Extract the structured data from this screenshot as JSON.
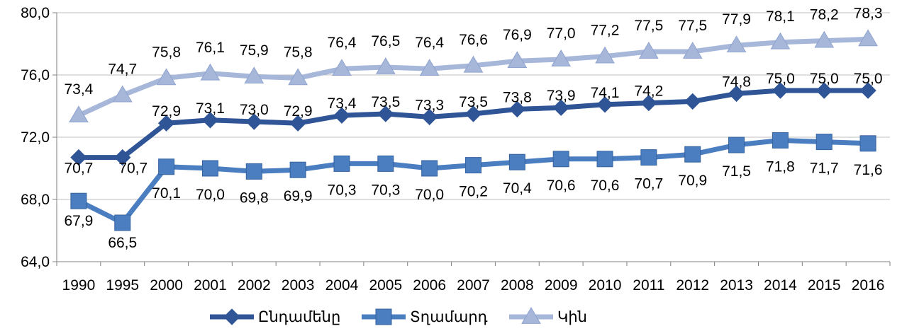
{
  "chart_data": {
    "type": "line",
    "categories": [
      "1990",
      "1995",
      "2000",
      "2001",
      "2002",
      "2003",
      "2004",
      "2005",
      "2006",
      "2007",
      "2008",
      "2009",
      "2010",
      "2011",
      "2012",
      "2013",
      "2014",
      "2015",
      "2016"
    ],
    "ylim": [
      64,
      80
    ],
    "yticks": [
      "64,0",
      "68,0",
      "72,0",
      "76,0",
      "80,0"
    ],
    "ytick_values": [
      64,
      68,
      72,
      76,
      80
    ],
    "grid": "horizontal",
    "legend_position": "bottom",
    "series": [
      {
        "name": "Ընդամենը",
        "color": "#2F5597",
        "marker": "diamond",
        "values": [
          70.7,
          70.7,
          72.9,
          73.1,
          73.0,
          72.9,
          73.4,
          73.5,
          73.3,
          73.5,
          73.8,
          73.9,
          74.1,
          74.2,
          74.3,
          74.8,
          75.0,
          75.0,
          75.0
        ],
        "labels": [
          "70,7",
          "70,7",
          "72,9",
          "73,1",
          "73,0",
          "72,9",
          "73,4",
          "73,5",
          "73,3",
          "73,5",
          "73,8",
          "73,9",
          "74,1",
          "74,2",
          "",
          "74,8",
          "75,0",
          "75,0",
          "75,0"
        ]
      },
      {
        "name": "Տղամարդ",
        "color": "#4A7EC0",
        "marker": "square",
        "values": [
          67.9,
          66.5,
          70.1,
          70.0,
          69.8,
          69.9,
          70.3,
          70.3,
          70.0,
          70.2,
          70.4,
          70.6,
          70.6,
          70.7,
          70.9,
          71.5,
          71.8,
          71.7,
          71.6
        ],
        "labels": [
          "67,9",
          "66,5",
          "70,1",
          "70,0",
          "69,8",
          "69,9",
          "70,3",
          "70,3",
          "70,0",
          "70,2",
          "70,4",
          "70,6",
          "70,6",
          "70,7",
          "70,9",
          "71,5",
          "71,8",
          "71,7",
          "71,6"
        ]
      },
      {
        "name": "Կին",
        "color": "#A6B7D9",
        "marker": "triangle",
        "values": [
          73.4,
          74.7,
          75.8,
          76.1,
          75.9,
          75.8,
          76.4,
          76.5,
          76.4,
          76.6,
          76.9,
          77.0,
          77.2,
          77.5,
          77.5,
          77.9,
          78.1,
          78.2,
          78.3
        ],
        "labels": [
          "73,4",
          "74,7",
          "75,8",
          "76,1",
          "75,9",
          "75,8",
          "76,4",
          "76,5",
          "76,4",
          "76,6",
          "76,9",
          "77,0",
          "77,2",
          "77,5",
          "77,5",
          "77,9",
          "78,1",
          "78,2",
          "78,3"
        ]
      }
    ]
  }
}
